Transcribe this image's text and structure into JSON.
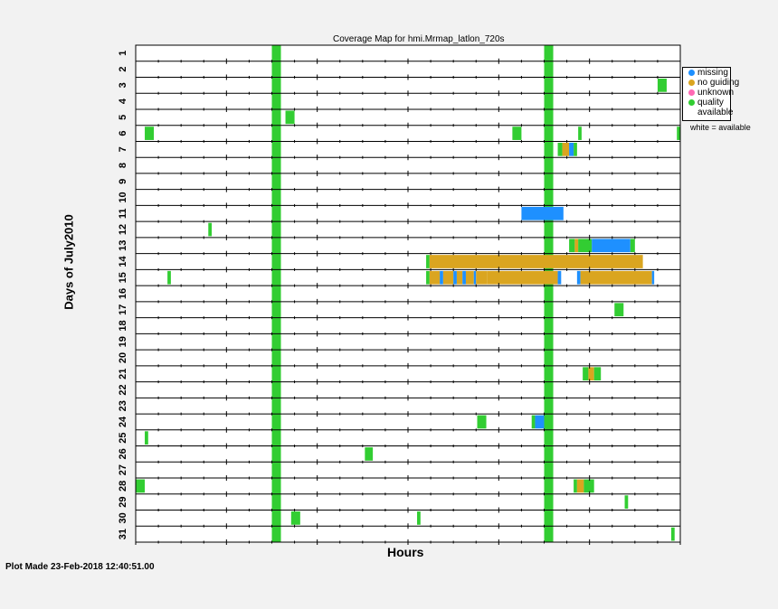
{
  "chart_data": {
    "type": "coverage-map",
    "title": "Coverage Map for hmi.Mrmap_latlon_720s",
    "xlabel": "Hours",
    "ylabel": "Days of July2010",
    "xlim": [
      0,
      24
    ],
    "days": [
      "1",
      "2",
      "3",
      "4",
      "5",
      "6",
      "7",
      "8",
      "9",
      "10",
      "11",
      "12",
      "13",
      "14",
      "15",
      "16",
      "17",
      "18",
      "19",
      "20",
      "21",
      "22",
      "23",
      "24",
      "25",
      "26",
      "27",
      "28",
      "29",
      "30",
      "31"
    ],
    "colors": {
      "missing": "#1e90ff",
      "no guiding": "#daa520",
      "unknown": "#ff69b4",
      "quality": "#32cd32"
    },
    "full_month_bands": [
      {
        "start": 6.0,
        "end": 6.4,
        "status": "quality"
      },
      {
        "start": 18.0,
        "end": 18.4,
        "status": "quality"
      }
    ],
    "segments": [
      {
        "day": 3,
        "start": 23.0,
        "end": 23.4,
        "status": "quality"
      },
      {
        "day": 5,
        "start": 6.6,
        "end": 7.0,
        "status": "quality"
      },
      {
        "day": 6,
        "start": 0.4,
        "end": 0.8,
        "status": "quality"
      },
      {
        "day": 6,
        "start": 16.6,
        "end": 17.0,
        "status": "quality"
      },
      {
        "day": 6,
        "start": 19.5,
        "end": 19.65,
        "status": "quality"
      },
      {
        "day": 6,
        "start": 23.85,
        "end": 24.0,
        "status": "quality"
      },
      {
        "day": 7,
        "start": 18.6,
        "end": 18.8,
        "status": "quality"
      },
      {
        "day": 7,
        "start": 18.8,
        "end": 19.1,
        "status": "no guiding"
      },
      {
        "day": 7,
        "start": 19.1,
        "end": 19.3,
        "status": "missing"
      },
      {
        "day": 7,
        "start": 19.3,
        "end": 19.45,
        "status": "quality"
      },
      {
        "day": 11,
        "start": 17.0,
        "end": 18.85,
        "status": "missing"
      },
      {
        "day": 12,
        "start": 3.2,
        "end": 3.35,
        "status": "quality"
      },
      {
        "day": 13,
        "start": 19.1,
        "end": 19.35,
        "status": "quality"
      },
      {
        "day": 13,
        "start": 19.35,
        "end": 19.5,
        "status": "no guiding"
      },
      {
        "day": 13,
        "start": 19.5,
        "end": 20.1,
        "status": "quality"
      },
      {
        "day": 13,
        "start": 20.1,
        "end": 21.8,
        "status": "missing"
      },
      {
        "day": 13,
        "start": 21.8,
        "end": 22.0,
        "status": "quality"
      },
      {
        "day": 14,
        "start": 12.8,
        "end": 12.95,
        "status": "quality"
      },
      {
        "day": 14,
        "start": 12.95,
        "end": 22.35,
        "status": "no guiding"
      },
      {
        "day": 15,
        "start": 1.4,
        "end": 1.55,
        "status": "quality"
      },
      {
        "day": 15,
        "start": 12.8,
        "end": 12.95,
        "status": "quality"
      },
      {
        "day": 15,
        "start": 12.95,
        "end": 13.4,
        "status": "no guiding"
      },
      {
        "day": 15,
        "start": 13.4,
        "end": 13.55,
        "status": "missing"
      },
      {
        "day": 15,
        "start": 13.55,
        "end": 14.0,
        "status": "no guiding"
      },
      {
        "day": 15,
        "start": 14.0,
        "end": 14.15,
        "status": "missing"
      },
      {
        "day": 15,
        "start": 14.15,
        "end": 14.4,
        "status": "no guiding"
      },
      {
        "day": 15,
        "start": 14.4,
        "end": 14.55,
        "status": "missing"
      },
      {
        "day": 15,
        "start": 14.55,
        "end": 14.9,
        "status": "no guiding"
      },
      {
        "day": 15,
        "start": 14.9,
        "end": 15.0,
        "status": "missing"
      },
      {
        "day": 15,
        "start": 15.0,
        "end": 15.5,
        "status": "no guiding"
      },
      {
        "day": 15,
        "start": 15.5,
        "end": 18.6,
        "status": "no guiding"
      },
      {
        "day": 15,
        "start": 18.6,
        "end": 18.75,
        "status": "missing"
      },
      {
        "day": 15,
        "start": 19.45,
        "end": 19.6,
        "status": "missing"
      },
      {
        "day": 15,
        "start": 19.6,
        "end": 22.75,
        "status": "no guiding"
      },
      {
        "day": 15,
        "start": 22.75,
        "end": 22.85,
        "status": "missing"
      },
      {
        "day": 17,
        "start": 21.1,
        "end": 21.5,
        "status": "quality"
      },
      {
        "day": 21,
        "start": 19.7,
        "end": 19.95,
        "status": "quality"
      },
      {
        "day": 21,
        "start": 19.95,
        "end": 20.2,
        "status": "no guiding"
      },
      {
        "day": 21,
        "start": 20.2,
        "end": 20.5,
        "status": "quality"
      },
      {
        "day": 24,
        "start": 15.05,
        "end": 15.45,
        "status": "quality"
      },
      {
        "day": 24,
        "start": 17.45,
        "end": 17.6,
        "status": "quality"
      },
      {
        "day": 24,
        "start": 17.6,
        "end": 18.0,
        "status": "missing"
      },
      {
        "day": 25,
        "start": 0.4,
        "end": 0.55,
        "status": "quality"
      },
      {
        "day": 26,
        "start": 10.1,
        "end": 10.45,
        "status": "quality"
      },
      {
        "day": 28,
        "start": 0.0,
        "end": 0.4,
        "status": "quality"
      },
      {
        "day": 28,
        "start": 19.3,
        "end": 19.45,
        "status": "quality"
      },
      {
        "day": 28,
        "start": 19.45,
        "end": 19.75,
        "status": "no guiding"
      },
      {
        "day": 28,
        "start": 19.75,
        "end": 20.2,
        "status": "quality"
      },
      {
        "day": 29,
        "start": 21.55,
        "end": 21.7,
        "status": "quality"
      },
      {
        "day": 30,
        "start": 6.85,
        "end": 7.25,
        "status": "quality"
      },
      {
        "day": 30,
        "start": 12.4,
        "end": 12.55,
        "status": "quality"
      },
      {
        "day": 31,
        "start": 23.6,
        "end": 23.75,
        "status": "quality"
      }
    ],
    "legend": [
      {
        "label": "missing",
        "status": "missing"
      },
      {
        "label": "no guiding",
        "status": "no guiding"
      },
      {
        "label": "unknown",
        "status": "unknown"
      },
      {
        "label": "quality",
        "status": "quality"
      },
      {
        "label": "available",
        "status": ""
      }
    ],
    "legend_note": "white = available",
    "footer": "Plot Made 23-Feb-2018 12:40:51.00"
  }
}
